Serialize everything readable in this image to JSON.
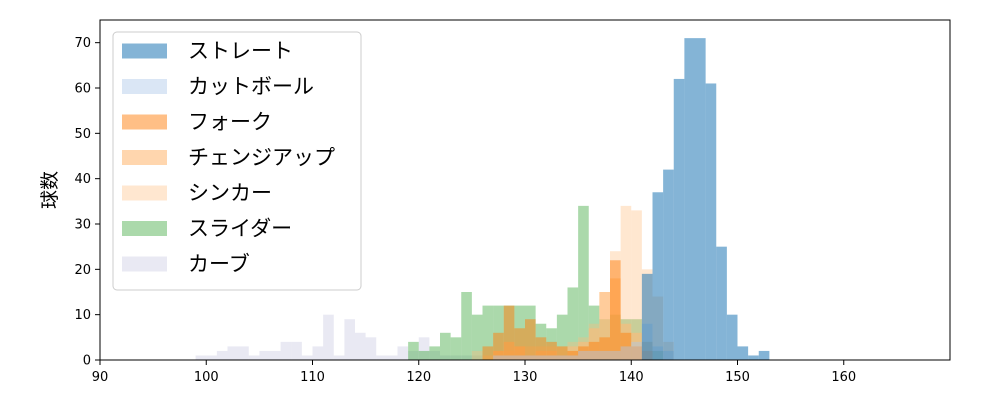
{
  "chart_data": {
    "type": "histogram",
    "xlabel": "",
    "ylabel": "球数",
    "xlim": [
      90,
      170
    ],
    "ylim": [
      0,
      75
    ],
    "x_ticks": [
      90,
      100,
      110,
      120,
      130,
      140,
      150,
      160
    ],
    "y_ticks": [
      0,
      10,
      20,
      30,
      40,
      50,
      60,
      70
    ],
    "grid": false,
    "legend_position": "top-left",
    "series": [
      {
        "name": "カーブ",
        "color": "#8f8fc4",
        "opacity": 0.2,
        "bins": [
          [
            99,
            1
          ],
          [
            100,
            1
          ],
          [
            101,
            2
          ],
          [
            102,
            3
          ],
          [
            103,
            3
          ],
          [
            104,
            1
          ],
          [
            105,
            2
          ],
          [
            106,
            2
          ],
          [
            107,
            4
          ],
          [
            108,
            4
          ],
          [
            109,
            1
          ],
          [
            110,
            3
          ],
          [
            111,
            10
          ],
          [
            112,
            1
          ],
          [
            113,
            9
          ],
          [
            114,
            6
          ],
          [
            115,
            5
          ],
          [
            116,
            1
          ],
          [
            117,
            1
          ],
          [
            118,
            3
          ],
          [
            119,
            2
          ],
          [
            120,
            5
          ],
          [
            121,
            2
          ],
          [
            122,
            1
          ],
          [
            123,
            1
          ],
          [
            124,
            1
          ],
          [
            125,
            1
          ]
        ]
      },
      {
        "name": "スライダー",
        "color": "#2ca02c",
        "opacity": 0.4,
        "bins": [
          [
            119,
            4
          ],
          [
            120,
            2
          ],
          [
            121,
            3
          ],
          [
            122,
            6
          ],
          [
            123,
            5
          ],
          [
            124,
            15
          ],
          [
            125,
            10
          ],
          [
            126,
            12
          ],
          [
            127,
            12
          ],
          [
            128,
            12
          ],
          [
            129,
            12
          ],
          [
            130,
            12
          ],
          [
            131,
            8
          ],
          [
            132,
            7
          ],
          [
            133,
            10
          ],
          [
            134,
            16
          ],
          [
            135,
            34
          ],
          [
            136,
            12
          ],
          [
            137,
            9
          ],
          [
            138,
            10
          ],
          [
            139,
            9
          ],
          [
            140,
            9
          ],
          [
            141,
            4
          ],
          [
            142,
            2
          ]
        ]
      },
      {
        "name": "シンカー",
        "color": "#ffbb78",
        "opacity": 0.35,
        "bins": [
          [
            125,
            2
          ],
          [
            126,
            1
          ],
          [
            127,
            2
          ],
          [
            128,
            2
          ],
          [
            129,
            3
          ],
          [
            130,
            3
          ],
          [
            131,
            3
          ],
          [
            132,
            3
          ],
          [
            133,
            3
          ],
          [
            134,
            4
          ],
          [
            135,
            5
          ],
          [
            136,
            8
          ],
          [
            137,
            15
          ],
          [
            138,
            24
          ],
          [
            139,
            34
          ],
          [
            140,
            33
          ],
          [
            141,
            20
          ],
          [
            142,
            14
          ],
          [
            143,
            4
          ]
        ]
      },
      {
        "name": "チェンジアップ",
        "color": "#ffbb78",
        "opacity": 0.6,
        "bins": [
          [
            127,
            2
          ],
          [
            128,
            4
          ],
          [
            129,
            3
          ],
          [
            130,
            1
          ],
          [
            131,
            2
          ],
          [
            132,
            2
          ],
          [
            133,
            1
          ],
          [
            134,
            3
          ],
          [
            135,
            4
          ],
          [
            136,
            7
          ],
          [
            137,
            15
          ],
          [
            138,
            18
          ],
          [
            139,
            8
          ],
          [
            140,
            6
          ],
          [
            141,
            4
          ]
        ]
      },
      {
        "name": "フォーク",
        "color": "#ff7f0e",
        "opacity": 0.5,
        "bins": [
          [
            126,
            3
          ],
          [
            127,
            6
          ],
          [
            128,
            12
          ],
          [
            129,
            7
          ],
          [
            130,
            9
          ],
          [
            131,
            5
          ],
          [
            132,
            4
          ],
          [
            133,
            3
          ],
          [
            134,
            2
          ],
          [
            135,
            3
          ],
          [
            136,
            4
          ],
          [
            137,
            5
          ],
          [
            138,
            22
          ],
          [
            139,
            6
          ],
          [
            140,
            3
          ],
          [
            141,
            2
          ]
        ]
      },
      {
        "name": "カットボール",
        "color": "#aec7e8",
        "opacity": 0.45,
        "bins": [
          [
            127,
            1
          ],
          [
            128,
            1
          ],
          [
            129,
            1
          ],
          [
            130,
            1
          ],
          [
            131,
            1
          ],
          [
            132,
            1
          ],
          [
            133,
            1
          ],
          [
            134,
            1
          ],
          [
            135,
            2
          ],
          [
            136,
            2
          ],
          [
            137,
            2
          ],
          [
            138,
            2
          ],
          [
            139,
            3
          ],
          [
            140,
            4
          ],
          [
            141,
            8
          ],
          [
            142,
            3
          ],
          [
            143,
            2
          ]
        ]
      },
      {
        "name": "ストレート",
        "color": "#1f77b4",
        "opacity": 0.55,
        "bins": [
          [
            141,
            19
          ],
          [
            142,
            37
          ],
          [
            143,
            42
          ],
          [
            144,
            62
          ],
          [
            145,
            71
          ],
          [
            146,
            71
          ],
          [
            147,
            61
          ],
          [
            148,
            25
          ],
          [
            149,
            10
          ],
          [
            150,
            3
          ],
          [
            151,
            1
          ],
          [
            152,
            2
          ]
        ]
      }
    ],
    "legend": [
      {
        "label": "ストレート",
        "color": "#1f77b4",
        "opacity": 0.55
      },
      {
        "label": "カットボール",
        "color": "#aec7e8",
        "opacity": 0.45
      },
      {
        "label": "フォーク",
        "color": "#ff7f0e",
        "opacity": 0.5
      },
      {
        "label": "チェンジアップ",
        "color": "#ffbb78",
        "opacity": 0.6
      },
      {
        "label": "シンカー",
        "color": "#ffbb78",
        "opacity": 0.35
      },
      {
        "label": "スライダー",
        "color": "#2ca02c",
        "opacity": 0.4
      },
      {
        "label": "カーブ",
        "color": "#8f8fc4",
        "opacity": 0.2
      }
    ]
  }
}
